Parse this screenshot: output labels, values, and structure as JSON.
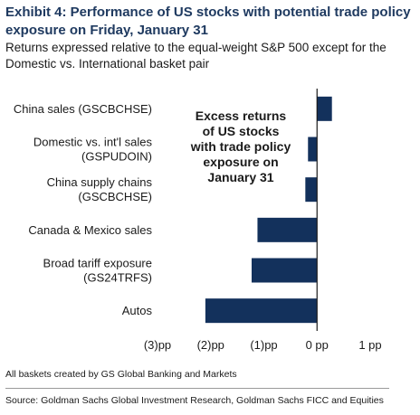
{
  "header": {
    "title": "Exhibit 4: Performance of US stocks with potential trade policy exposure on Friday, January 31",
    "subtitle": "Returns expressed relative to the equal-weight S&P 500 except for the Domestic vs. International basket pair"
  },
  "chart_data": {
    "type": "bar",
    "orientation": "horizontal",
    "categories": [
      [
        "China sales (GSCBCHSE)"
      ],
      [
        "Domestic vs. int'l sales",
        "(GSPUDOIN)"
      ],
      [
        "China supply chains",
        "(GSCBCHSE)"
      ],
      [
        "Canada & Mexico sales"
      ],
      [
        "Broad tariff exposure",
        "(GS24TRFS)"
      ],
      [
        "Autos"
      ]
    ],
    "values": [
      0.28,
      -0.17,
      -0.22,
      -1.12,
      -1.23,
      -2.1
    ],
    "xlim": [
      -3,
      1
    ],
    "x_ticks": [
      -3,
      -2,
      -1,
      0,
      1
    ],
    "x_tick_labels": [
      "(3)pp",
      "(2)pp",
      "(1)pp",
      "0 pp",
      "1 pp"
    ],
    "bar_color": "#13315c",
    "annotation": [
      "Excess returns",
      "of US stocks",
      "with trade policy",
      "exposure on",
      "January 31"
    ],
    "grid": false,
    "legend": "none"
  },
  "footer": {
    "note": "All baskets created by GS Global Banking and Markets",
    "source": "Source: Goldman Sachs Global Investment Research, Goldman Sachs FICC and Equities"
  }
}
